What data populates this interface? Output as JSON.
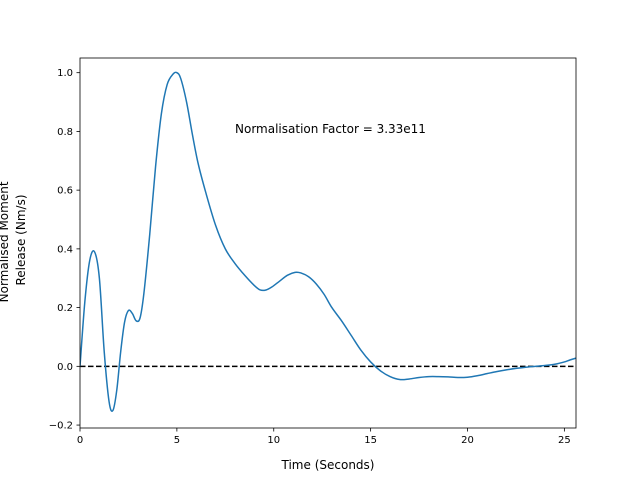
{
  "chart_data": {
    "type": "line",
    "title": "",
    "xlabel": "Time (Seconds)",
    "ylabel_lines": [
      "Normalised Moment",
      "Release (Nm/s)"
    ],
    "xlim": [
      0,
      25.6
    ],
    "ylim": [
      -0.21,
      1.05
    ],
    "xticks": [
      0,
      5,
      10,
      15,
      20,
      25
    ],
    "xtick_labels": [
      "0",
      "5",
      "10",
      "15",
      "20",
      "25"
    ],
    "yticks": [
      -0.2,
      0.0,
      0.2,
      0.4,
      0.6,
      0.8,
      1.0
    ],
    "ytick_labels": [
      "−0.2",
      "0.0",
      "0.2",
      "0.4",
      "0.6",
      "0.8",
      "1.0"
    ],
    "grid": false,
    "annotation": "Normalisation Factor = 3.33e11",
    "reference_line": {
      "y": 0.0,
      "style": "dashed",
      "color": "#000000"
    },
    "series": [
      {
        "color": "#1f77b4",
        "x": [
          0,
          0.25,
          0.5,
          0.75,
          1.0,
          1.25,
          1.5,
          1.7,
          1.9,
          2.1,
          2.3,
          2.5,
          2.7,
          2.9,
          3.1,
          3.3,
          3.6,
          3.9,
          4.2,
          4.5,
          4.8,
          5.0,
          5.2,
          5.5,
          5.8,
          6.1,
          6.5,
          7.0,
          7.5,
          8.0,
          8.5,
          9.0,
          9.3,
          9.6,
          9.9,
          10.3,
          10.7,
          11.1,
          11.4,
          11.8,
          12.2,
          12.6,
          13.0,
          13.5,
          14.0,
          14.5,
          15.0,
          15.5,
          16.0,
          16.5,
          17.0,
          17.5,
          18.0,
          18.5,
          19.0,
          19.5,
          20.0,
          20.5,
          21.0,
          21.5,
          22.0,
          22.5,
          23.0,
          23.5,
          24.0,
          24.5,
          25.0,
          25.3,
          25.6
        ],
        "y": [
          0.0,
          0.22,
          0.36,
          0.39,
          0.3,
          0.05,
          -0.12,
          -0.15,
          -0.08,
          0.05,
          0.15,
          0.19,
          0.18,
          0.155,
          0.165,
          0.25,
          0.45,
          0.68,
          0.86,
          0.96,
          0.995,
          1.0,
          0.98,
          0.9,
          0.79,
          0.69,
          0.59,
          0.48,
          0.4,
          0.35,
          0.31,
          0.275,
          0.26,
          0.26,
          0.27,
          0.29,
          0.31,
          0.32,
          0.318,
          0.305,
          0.28,
          0.245,
          0.2,
          0.155,
          0.105,
          0.055,
          0.015,
          -0.015,
          -0.035,
          -0.045,
          -0.043,
          -0.038,
          -0.035,
          -0.035,
          -0.036,
          -0.038,
          -0.037,
          -0.032,
          -0.025,
          -0.018,
          -0.012,
          -0.007,
          -0.003,
          0.0,
          0.003,
          0.007,
          0.015,
          0.022,
          0.028
        ]
      }
    ]
  }
}
